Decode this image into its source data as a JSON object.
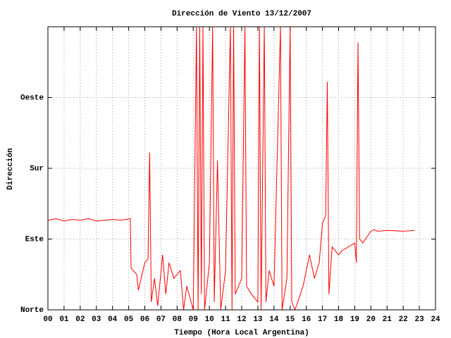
{
  "chart_data": {
    "type": "line",
    "title": "Dirección de Viento 13/12/2007",
    "x_label": "Tiempo (Hora Local Argentina)",
    "y_label": "Dirección",
    "color": "#ff0000",
    "grid": true,
    "xlim": [
      0,
      24
    ],
    "ylim": [
      0,
      360
    ],
    "xticks": [
      {
        "value": 0,
        "label": "00"
      },
      {
        "value": 1,
        "label": "01"
      },
      {
        "value": 2,
        "label": "02"
      },
      {
        "value": 3,
        "label": "03"
      },
      {
        "value": 4,
        "label": "04"
      },
      {
        "value": 5,
        "label": "05"
      },
      {
        "value": 6,
        "label": "06"
      },
      {
        "value": 7,
        "label": "07"
      },
      {
        "value": 8,
        "label": "08"
      },
      {
        "value": 9,
        "label": "09"
      },
      10,
      11,
      12,
      13,
      14,
      15,
      16,
      17,
      18,
      19,
      20,
      21,
      22,
      23,
      24
    ],
    "yticks": [
      {
        "value": 0,
        "label": "Norte"
      },
      {
        "value": 90,
        "label": "Este"
      },
      {
        "value": 180,
        "label": "Sur"
      },
      {
        "value": 270,
        "label": "Oeste"
      }
    ],
    "x": [
      0,
      0.5,
      1,
      1.5,
      2,
      2.5,
      3,
      3.5,
      4,
      4.5,
      5.1,
      5.15,
      5.5,
      5.6,
      6,
      6.2,
      6.3,
      6.4,
      6.6,
      6.8,
      7.1,
      7.3,
      7.5,
      7.8,
      8.2,
      8.4,
      8.6,
      9,
      9.2,
      9.3,
      9.4,
      9.5,
      9.6,
      9.7,
      10,
      10.2,
      10.3,
      10.5,
      10.7,
      11,
      11.3,
      11.4,
      11.5,
      11.6,
      12,
      12.2,
      12.3,
      12.6,
      13,
      13.1,
      13.2,
      13.4,
      13.5,
      13.7,
      14,
      14.4,
      14.5,
      14.8,
      15,
      15.1,
      15.3,
      15.8,
      16.2,
      16.5,
      16.8,
      17,
      17.2,
      17.3,
      17.4,
      17.6,
      18,
      18.2,
      18.6,
      19,
      19.1,
      19.2,
      19.3,
      19.5,
      20,
      20.2,
      20.4,
      21,
      22,
      22.7
    ],
    "values": [
      114,
      116,
      113,
      115,
      114,
      116,
      113,
      114,
      115,
      114,
      116,
      53,
      45,
      25,
      60,
      65,
      200,
      10,
      40,
      5,
      70,
      20,
      60,
      40,
      50,
      0,
      30,
      0,
      360,
      0,
      360,
      20,
      360,
      0,
      60,
      360,
      10,
      190,
      0,
      50,
      360,
      0,
      360,
      20,
      40,
      360,
      30,
      20,
      10,
      360,
      0,
      360,
      10,
      50,
      30,
      360,
      0,
      40,
      360,
      10,
      0,
      30,
      70,
      40,
      60,
      110,
      120,
      290,
      20,
      80,
      70,
      75,
      80,
      85,
      60,
      340,
      90,
      85,
      100,
      102,
      100,
      101,
      100,
      101
    ]
  }
}
